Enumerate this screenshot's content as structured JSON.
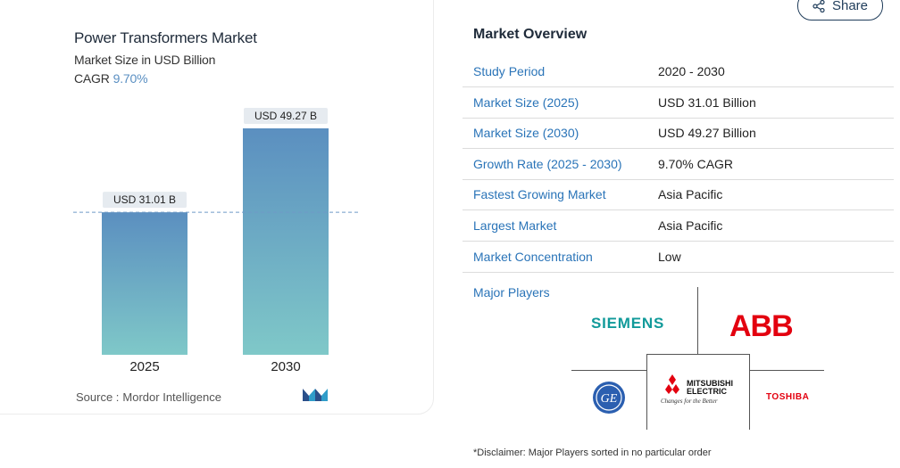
{
  "chart": {
    "title": "Power Transformers Market",
    "subtitle": "Market Size in USD Billion",
    "cagr_label": "CAGR",
    "cagr_value": "9.70%",
    "source_label": "Source :",
    "source_value": "Mordor Intelligence",
    "bar_color_top": "#5b8fc0",
    "bar_color_bottom": "#7fc8c8"
  },
  "chart_data": {
    "type": "bar",
    "categories": [
      "2025",
      "2030"
    ],
    "values": [
      31.01,
      49.27
    ],
    "data_labels": [
      "USD 31.01 B",
      "USD 49.27 B"
    ],
    "title": "Power Transformers Market",
    "subtitle": "Market Size in USD Billion",
    "xlabel": "",
    "ylabel": "",
    "ylim": [
      0,
      49.27
    ],
    "grid": false,
    "reference_line": 31.01
  },
  "share": {
    "label": "Share",
    "icon": "share-icon"
  },
  "overview": {
    "title": "Market Overview",
    "rows": [
      {
        "key": "Study Period",
        "value": "2020 - 2030"
      },
      {
        "key": "Market Size (2025)",
        "value": "USD 31.01 Billion"
      },
      {
        "key": "Market Size (2030)",
        "value": "USD 49.27 Billion"
      },
      {
        "key": "Growth Rate (2025 - 2030)",
        "value": "9.70% CAGR"
      },
      {
        "key": "Fastest Growing Market",
        "value": "Asia Pacific"
      },
      {
        "key": "Largest Market",
        "value": "Asia Pacific"
      },
      {
        "key": "Market Concentration",
        "value": "Low"
      }
    ],
    "players_label": "Major Players",
    "players": {
      "siemens": "SIEMENS",
      "abb": "ABB",
      "ge": "GE",
      "mitsubishi_line1": "MITSUBISHI",
      "mitsubishi_line2": "ELECTRIC",
      "mitsubishi_tag": "Changes for the Better",
      "toshiba": "TOSHIBA"
    },
    "disclaimer": "*Disclaimer: Major Players sorted in no particular order"
  }
}
